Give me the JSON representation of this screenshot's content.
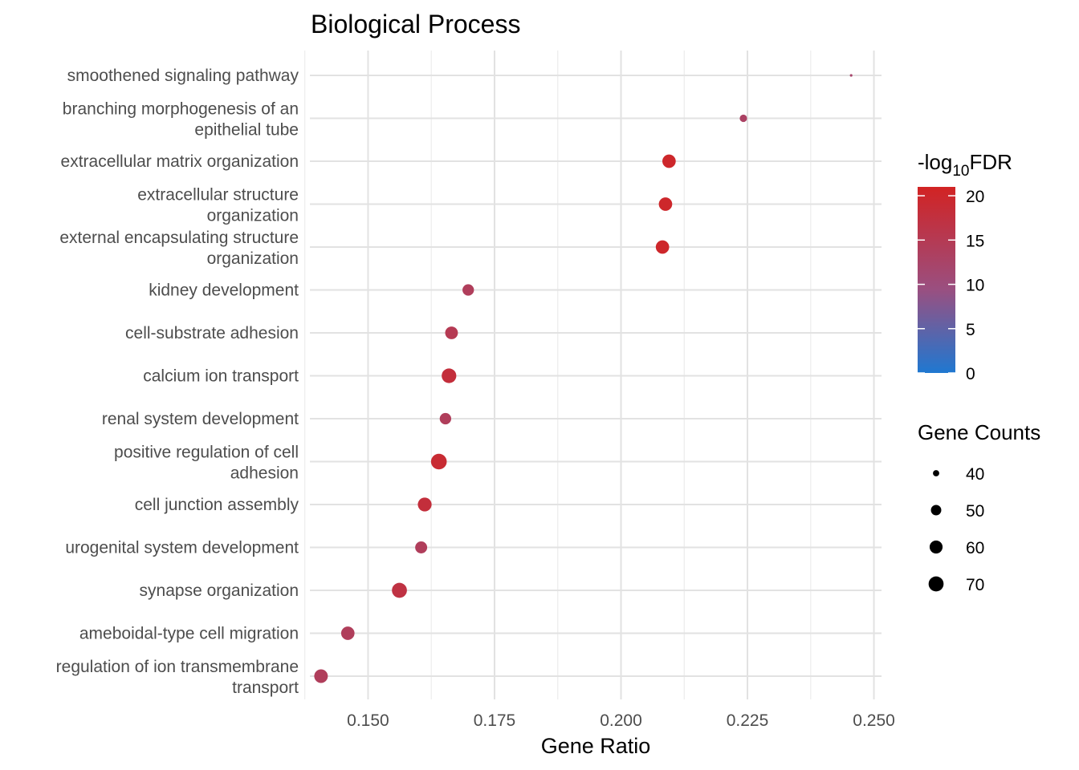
{
  "chart_data": {
    "type": "scatter",
    "title": "Biological Process",
    "xlabel": "Gene Ratio",
    "ylabel": "",
    "xlim": [
      0.1385,
      0.2515
    ],
    "x_ticks": [
      0.15,
      0.175,
      0.2,
      0.225,
      0.25
    ],
    "x_tick_labels": [
      "0.150",
      "0.175",
      "0.200",
      "0.225",
      "0.250"
    ],
    "grid": true,
    "terms": [
      {
        "label_lines": [
          "smoothened signaling pathway"
        ],
        "gene_ratio": 0.2455,
        "count": 37,
        "neg_log10_fdr": 12
      },
      {
        "label_lines": [
          "branching morphogenesis of an",
          "epithelial tube"
        ],
        "gene_ratio": 0.2242,
        "count": 42,
        "neg_log10_fdr": 13
      },
      {
        "label_lines": [
          "extracellular matrix organization"
        ],
        "gene_ratio": 0.2095,
        "count": 62,
        "neg_log10_fdr": 20
      },
      {
        "label_lines": [
          "extracellular structure",
          "organization"
        ],
        "gene_ratio": 0.2088,
        "count": 62,
        "neg_log10_fdr": 20
      },
      {
        "label_lines": [
          "external encapsulating structure",
          "organization"
        ],
        "gene_ratio": 0.2082,
        "count": 62,
        "neg_log10_fdr": 20
      },
      {
        "label_lines": [
          "kidney development"
        ],
        "gene_ratio": 0.1698,
        "count": 54,
        "neg_log10_fdr": 14
      },
      {
        "label_lines": [
          "cell-substrate adhesion"
        ],
        "gene_ratio": 0.1665,
        "count": 59,
        "neg_log10_fdr": 15
      },
      {
        "label_lines": [
          "calcium ion transport"
        ],
        "gene_ratio": 0.166,
        "count": 68,
        "neg_log10_fdr": 18
      },
      {
        "label_lines": [
          "renal system development"
        ],
        "gene_ratio": 0.1653,
        "count": 54,
        "neg_log10_fdr": 14
      },
      {
        "label_lines": [
          "positive regulation of cell",
          "adhesion"
        ],
        "gene_ratio": 0.164,
        "count": 74,
        "neg_log10_fdr": 19
      },
      {
        "label_lines": [
          "cell junction assembly"
        ],
        "gene_ratio": 0.1612,
        "count": 64,
        "neg_log10_fdr": 18
      },
      {
        "label_lines": [
          "urogenital system development"
        ],
        "gene_ratio": 0.1605,
        "count": 56,
        "neg_log10_fdr": 14
      },
      {
        "label_lines": [
          "synapse organization"
        ],
        "gene_ratio": 0.1562,
        "count": 70,
        "neg_log10_fdr": 17
      },
      {
        "label_lines": [
          "ameboidal-type cell migration"
        ],
        "gene_ratio": 0.146,
        "count": 62,
        "neg_log10_fdr": 14
      },
      {
        "label_lines": [
          "regulation of ion transmembrane",
          "transport"
        ],
        "gene_ratio": 0.1407,
        "count": 63,
        "neg_log10_fdr": 14
      }
    ],
    "color_legend": {
      "title_main": "-log",
      "title_sub": "10",
      "title_tail": "FDR",
      "min": 0,
      "max": 21,
      "ticks": [
        0,
        5,
        10,
        15,
        20
      ],
      "tick_labels": [
        "0",
        "5",
        "10",
        "15",
        "20"
      ],
      "color_low": "#1f78d1",
      "color_mid": "#9a4f80",
      "color_high": "#d22323"
    },
    "size_legend": {
      "title": "Gene Counts",
      "values": [
        40,
        50,
        60,
        70
      ],
      "labels": [
        "40",
        "50",
        "60",
        "70"
      ]
    },
    "count_range": [
      37,
      74
    ]
  }
}
